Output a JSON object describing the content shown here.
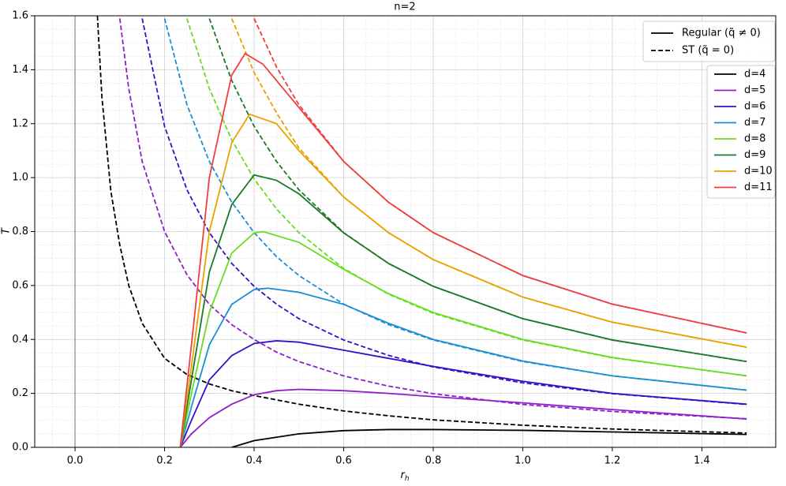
{
  "chart_data": {
    "type": "line",
    "title": "n=2",
    "xlabel": {
      "base": "r",
      "sub": "h"
    },
    "ylabel": "T",
    "xlim": [
      -0.09,
      1.565
    ],
    "ylim": [
      0,
      1.6
    ],
    "xticks": [
      {
        "value": 0,
        "label": "0.0"
      },
      0.2,
      0.4,
      0.6,
      0.8,
      {
        "value": 1,
        "label": "1.0"
      },
      1.2,
      1.4
    ],
    "yticks": [
      {
        "value": 0,
        "label": "0.0"
      },
      0.2,
      0.4,
      0.6,
      0.8,
      {
        "value": 1,
        "label": "1.0"
      },
      1.2,
      1.4,
      1.6
    ],
    "grid": true,
    "minor_grid": true,
    "legend": "upper right",
    "styles": [
      {
        "label": "Regular (q̃ ≠ 0)",
        "dashed": false
      },
      {
        "label": "ST (q̃ = 0)",
        "dashed": true
      }
    ],
    "series": [
      {
        "name": "d=4",
        "color": "#000000",
        "regular": {
          "x": [
            0.35,
            0.4,
            0.5,
            0.6,
            0.7,
            0.8,
            1.0,
            1.2,
            1.5
          ],
          "values": [
            0,
            0.025,
            0.05,
            0.062,
            0.066,
            0.066,
            0.063,
            0.057,
            0.048
          ]
        },
        "st": {
          "x": [
            0.05,
            0.06,
            0.08,
            0.1,
            0.12,
            0.15,
            0.2,
            0.25,
            0.3,
            0.35,
            0.4,
            0.5,
            0.6,
            0.7,
            0.8,
            1.0,
            1.2,
            1.5
          ],
          "values": [
            1.6,
            1.3,
            0.95,
            0.75,
            0.6,
            0.46,
            0.33,
            0.27,
            0.235,
            0.21,
            0.192,
            0.16,
            0.135,
            0.117,
            0.102,
            0.082,
            0.068,
            0.053
          ]
        }
      },
      {
        "name": "d=5",
        "color": "#8e1fc9",
        "regular": {
          "x": [
            0.235,
            0.26,
            0.3,
            0.35,
            0.4,
            0.45,
            0.5,
            0.6,
            0.7,
            0.8,
            1.0,
            1.2,
            1.5
          ],
          "values": [
            0,
            0.05,
            0.11,
            0.16,
            0.195,
            0.21,
            0.215,
            0.21,
            0.2,
            0.188,
            0.165,
            0.14,
            0.105
          ]
        },
        "st": {
          "x": [
            0.1,
            0.12,
            0.15,
            0.2,
            0.25,
            0.3,
            0.35,
            0.4,
            0.45,
            0.5,
            0.6,
            0.7,
            0.8,
            1.0,
            1.2,
            1.5
          ],
          "values": [
            1.59,
            1.33,
            1.06,
            0.8,
            0.64,
            0.53,
            0.455,
            0.4,
            0.353,
            0.318,
            0.265,
            0.227,
            0.199,
            0.159,
            0.133,
            0.106
          ]
        }
      },
      {
        "name": "d=6",
        "color": "#3a0dc8",
        "regular": {
          "x": [
            0.235,
            0.26,
            0.3,
            0.35,
            0.4,
            0.45,
            0.5,
            0.6,
            0.7,
            0.8,
            1.0,
            1.2,
            1.5
          ],
          "values": [
            0,
            0.1,
            0.25,
            0.34,
            0.385,
            0.395,
            0.39,
            0.36,
            0.33,
            0.3,
            0.245,
            0.2,
            0.16
          ]
        },
        "st": {
          "x": [
            0.15,
            0.2,
            0.25,
            0.3,
            0.35,
            0.4,
            0.45,
            0.5,
            0.6,
            0.7,
            0.8,
            1.0,
            1.2,
            1.5
          ],
          "values": [
            1.59,
            1.19,
            0.955,
            0.796,
            0.682,
            0.597,
            0.531,
            0.477,
            0.398,
            0.341,
            0.298,
            0.239,
            0.199,
            0.159
          ]
        }
      },
      {
        "name": "d=7",
        "color": "#1b8fd4",
        "regular": {
          "x": [
            0.235,
            0.26,
            0.3,
            0.35,
            0.4,
            0.43,
            0.5,
            0.6,
            0.7,
            0.8,
            1.0,
            1.2,
            1.5
          ],
          "values": [
            0,
            0.15,
            0.38,
            0.53,
            0.585,
            0.59,
            0.575,
            0.53,
            0.46,
            0.4,
            0.32,
            0.265,
            0.212
          ]
        },
        "st": {
          "x": [
            0.2,
            0.25,
            0.3,
            0.35,
            0.4,
            0.45,
            0.5,
            0.6,
            0.7,
            0.8,
            1.0,
            1.2,
            1.5
          ],
          "values": [
            1.59,
            1.27,
            1.06,
            0.909,
            0.796,
            0.707,
            0.637,
            0.531,
            0.455,
            0.398,
            0.318,
            0.265,
            0.212
          ]
        }
      },
      {
        "name": "d=8",
        "color": "#66dd1e",
        "regular": {
          "x": [
            0.235,
            0.26,
            0.3,
            0.35,
            0.4,
            0.42,
            0.5,
            0.6,
            0.7,
            0.8,
            1.0,
            1.2,
            1.5
          ],
          "values": [
            0,
            0.2,
            0.5,
            0.72,
            0.795,
            0.8,
            0.76,
            0.66,
            0.57,
            0.5,
            0.4,
            0.333,
            0.265
          ]
        },
        "st": {
          "x": [
            0.25,
            0.3,
            0.35,
            0.4,
            0.45,
            0.5,
            0.6,
            0.7,
            0.8,
            1.0,
            1.2,
            1.5
          ],
          "values": [
            1.59,
            1.33,
            1.14,
            0.995,
            0.884,
            0.796,
            0.663,
            0.568,
            0.497,
            0.398,
            0.332,
            0.265
          ]
        }
      },
      {
        "name": "d=9",
        "color": "#1a7a28",
        "regular": {
          "x": [
            0.235,
            0.26,
            0.3,
            0.35,
            0.4,
            0.45,
            0.5,
            0.6,
            0.7,
            0.8,
            1.0,
            1.2,
            1.5
          ],
          "values": [
            0,
            0.25,
            0.65,
            0.9,
            1.01,
            0.99,
            0.94,
            0.795,
            0.682,
            0.597,
            0.477,
            0.398,
            0.318
          ]
        },
        "st": {
          "x": [
            0.3,
            0.35,
            0.4,
            0.45,
            0.5,
            0.6,
            0.7,
            0.8,
            1.0,
            1.2,
            1.5
          ],
          "values": [
            1.59,
            1.36,
            1.19,
            1.06,
            0.955,
            0.796,
            0.682,
            0.597,
            0.477,
            0.398,
            0.318
          ]
        }
      },
      {
        "name": "d=10",
        "color": "#e9a200",
        "regular": {
          "x": [
            0.235,
            0.26,
            0.3,
            0.35,
            0.39,
            0.45,
            0.5,
            0.6,
            0.7,
            0.8,
            1.0,
            1.2,
            1.5
          ],
          "values": [
            0,
            0.3,
            0.8,
            1.13,
            1.235,
            1.2,
            1.1,
            0.928,
            0.796,
            0.696,
            0.557,
            0.464,
            0.371
          ]
        },
        "st": {
          "x": [
            0.35,
            0.4,
            0.45,
            0.5,
            0.6,
            0.7,
            0.8,
            1.0,
            1.2,
            1.5
          ],
          "values": [
            1.59,
            1.39,
            1.24,
            1.11,
            0.928,
            0.796,
            0.696,
            0.557,
            0.464,
            0.371
          ]
        }
      },
      {
        "name": "d=11",
        "color": "#ee4040",
        "regular": {
          "x": [
            0.235,
            0.26,
            0.3,
            0.35,
            0.38,
            0.42,
            0.5,
            0.6,
            0.7,
            0.8,
            1.0,
            1.2,
            1.5
          ],
          "values": [
            0,
            0.38,
            1.0,
            1.38,
            1.46,
            1.42,
            1.26,
            1.06,
            0.909,
            0.796,
            0.637,
            0.531,
            0.424
          ]
        },
        "st": {
          "x": [
            0.4,
            0.45,
            0.5,
            0.6,
            0.7,
            0.8,
            1.0,
            1.2,
            1.5
          ],
          "values": [
            1.59,
            1.41,
            1.27,
            1.06,
            0.909,
            0.796,
            0.637,
            0.531,
            0.424
          ]
        }
      }
    ]
  }
}
